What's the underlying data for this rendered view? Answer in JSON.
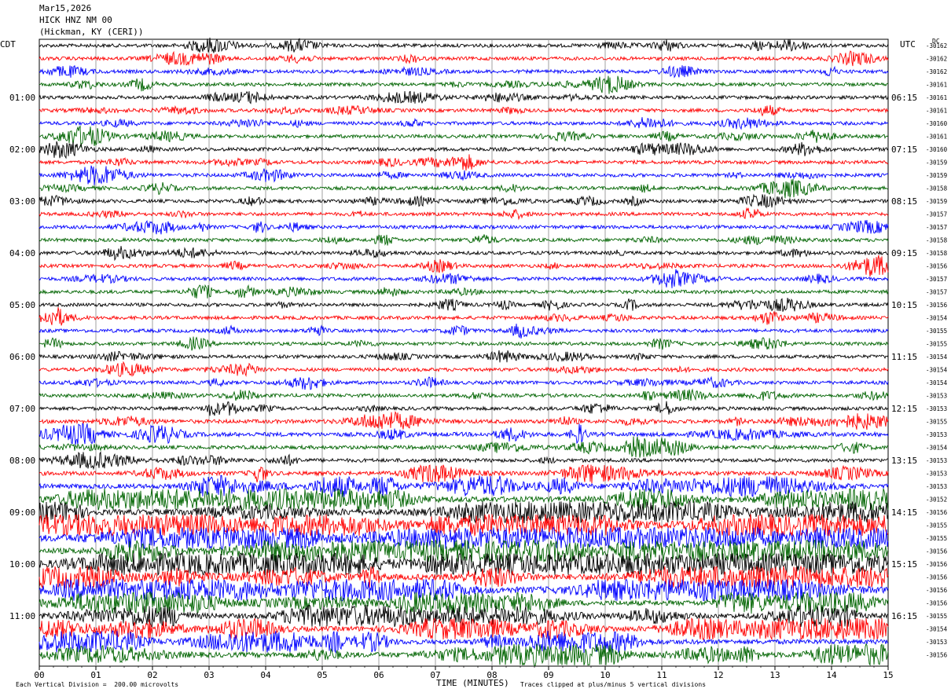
{
  "header": {
    "date": "Mar15,2026",
    "station": "HICK HNZ NM 00",
    "location": "(Hickman, KY (CERI))"
  },
  "left_tz": "CDT",
  "right_tz": "UTC",
  "dc_label": "DC",
  "footer": {
    "scale_note": "Each Vertical Division =  200.00 microvolts",
    "clip_note": "Traces clipped at plus/minus 5 vertical divisions",
    "xlabel": "TIME (MINUTES)"
  },
  "chart_data": {
    "type": "line",
    "title": "HICK HNZ NM 00",
    "xlabel": "TIME (MINUTES)",
    "ylabel": "",
    "xlim": [
      0,
      15
    ],
    "x_ticks": [
      "00",
      "01",
      "02",
      "03",
      "04",
      "05",
      "06",
      "07",
      "08",
      "09",
      "10",
      "11",
      "12",
      "13",
      "14",
      "15"
    ],
    "trace_colors": [
      "#000000",
      "#ff0000",
      "#0000ff",
      "#006400"
    ],
    "rows_per_hour": 4,
    "left_hour_labels": [
      "01:00",
      "02:00",
      "03:00",
      "04:00",
      "05:00",
      "06:00",
      "07:00",
      "08:00",
      "09:00",
      "10:00",
      "11:00"
    ],
    "right_hour_labels": [
      "06:15",
      "07:15",
      "08:15",
      "09:15",
      "10:15",
      "11:15",
      "12:15",
      "13:15",
      "14:15",
      "15:15",
      "16:15"
    ],
    "dc_offsets": [
      "-30162",
      "-30162",
      "-30162",
      "-30161",
      "-30161",
      "-30161",
      "-30160",
      "-30161",
      "-30160",
      "-30159",
      "-30159",
      "-30158",
      "-30159",
      "-30157",
      "-30157",
      "-30158",
      "-30158",
      "-30156",
      "-30157",
      "-30157",
      "-30156",
      "-30154",
      "-30155",
      "-30155",
      "-30154",
      "-30154",
      "-30154",
      "-30153",
      "-30153",
      "-30155",
      "-30153",
      "-30154",
      "-30153",
      "-30153",
      "-30153",
      "-30152",
      "-30156",
      "-30155",
      "-30155",
      "-30156",
      "-30156",
      "-30156",
      "-30156",
      "-30156",
      "-30155",
      "-30154",
      "-30153",
      "-30156"
    ],
    "row_activity": [
      1.0,
      1.0,
      1.0,
      1.0,
      1.0,
      1.0,
      1.0,
      1.0,
      1.1,
      1.0,
      1.0,
      1.0,
      1.0,
      1.0,
      1.0,
      1.0,
      1.0,
      1.0,
      1.0,
      1.0,
      1.0,
      1.0,
      1.0,
      1.0,
      1.0,
      1.0,
      1.0,
      1.0,
      1.1,
      1.4,
      1.8,
      1.3,
      1.2,
      1.6,
      2.2,
      3.0,
      3.2,
      3.4,
      3.6,
      3.4,
      3.6,
      3.4,
      3.6,
      2.6,
      2.6,
      2.4,
      2.4,
      2.6
    ]
  }
}
